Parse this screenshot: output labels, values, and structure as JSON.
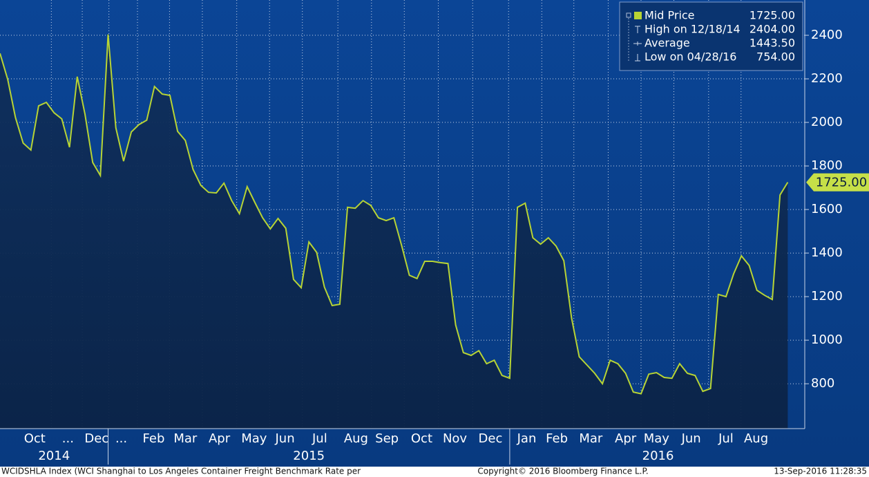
{
  "chart_data": {
    "type": "area-line",
    "series": [
      {
        "name": "Mid Price",
        "color": "#b8d434",
        "values": [
          2317,
          2197,
          2022,
          1905,
          1873,
          2076,
          2092,
          2044,
          2016,
          1886,
          2210,
          2038,
          1816,
          1756,
          2404,
          1975,
          1822,
          1956,
          1990,
          2010,
          2165,
          2130,
          2124,
          1959,
          1917,
          1784,
          1711,
          1679,
          1676,
          1721,
          1641,
          1581,
          1705,
          1632,
          1562,
          1511,
          1559,
          1514,
          1279,
          1241,
          1451,
          1403,
          1244,
          1159,
          1165,
          1610,
          1606,
          1641,
          1619,
          1562,
          1549,
          1562,
          1435,
          1298,
          1283,
          1362,
          1362,
          1356,
          1352,
          1070,
          943,
          930,
          952,
          892,
          908,
          838,
          825,
          1610,
          1629,
          1470,
          1441,
          1470,
          1432,
          1365,
          1102,
          924,
          886,
          848,
          800,
          908,
          892,
          848,
          762,
          754,
          844,
          851,
          829,
          825,
          892,
          848,
          838,
          765,
          778,
          1210,
          1200,
          1305,
          1387,
          1343,
          1229,
          1206,
          1187,
          1667,
          1725
        ]
      }
    ],
    "last_value": 1725,
    "last_value_label": "1725.00",
    "stats": [
      {
        "name": "High on 12/18/14",
        "value": 2404,
        "value_label": "2404.00"
      },
      {
        "name": "Average",
        "value": 1443.5,
        "value_label": "1443.50"
      },
      {
        "name": "Low on 04/28/16",
        "value": 754,
        "value_label": "754.00"
      }
    ],
    "xlim": [
      0,
      104.2
    ],
    "xticks": [
      {
        "value": 4.5,
        "label": "Oct"
      },
      {
        "value": 8.8,
        "label": "..."
      },
      {
        "value": 12.5,
        "label": "Dec"
      },
      {
        "value": 15.7,
        "label": "..."
      },
      {
        "value": 19.9,
        "label": "Feb"
      },
      {
        "value": 24.0,
        "label": "Mar"
      },
      {
        "value": 28.4,
        "label": "Apr"
      },
      {
        "value": 32.9,
        "label": "May"
      },
      {
        "value": 36.9,
        "label": "Jun"
      },
      {
        "value": 41.4,
        "label": "Jul"
      },
      {
        "value": 46.1,
        "label": "Aug"
      },
      {
        "value": 50.1,
        "label": "Sep"
      },
      {
        "value": 54.6,
        "label": "Oct"
      },
      {
        "value": 58.9,
        "label": "Nov"
      },
      {
        "value": 63.5,
        "label": "Dec"
      },
      {
        "value": 68.2,
        "label": "Jan"
      },
      {
        "value": 72.1,
        "label": "Feb"
      },
      {
        "value": 76.5,
        "label": "Mar"
      },
      {
        "value": 81.0,
        "label": "Apr"
      },
      {
        "value": 85.0,
        "label": "May"
      },
      {
        "value": 89.5,
        "label": "Jun"
      },
      {
        "value": 94.0,
        "label": "Jul"
      },
      {
        "value": 97.9,
        "label": "Aug"
      }
    ],
    "year_labels": [
      {
        "value": 7.0,
        "label": "2014"
      },
      {
        "value": 40.0,
        "label": "2015"
      },
      {
        "value": 85.2,
        "label": "2016"
      }
    ],
    "year_ticks": [
      14.0,
      66.0
    ],
    "ylim": [
      594,
      2562
    ],
    "yticks": [
      800,
      1000,
      1200,
      1400,
      1600,
      1800,
      2000,
      2200,
      2400
    ],
    "grid": true,
    "footer": {
      "left": "WCIDSHLA Index (WCI Shanghai to Los Angeles Container Freight Benchmark Rate per",
      "center": "Copyright© 2016 Bloomberg Finance L.P.",
      "right": "13-Sep-2016 11:28:35"
    }
  }
}
